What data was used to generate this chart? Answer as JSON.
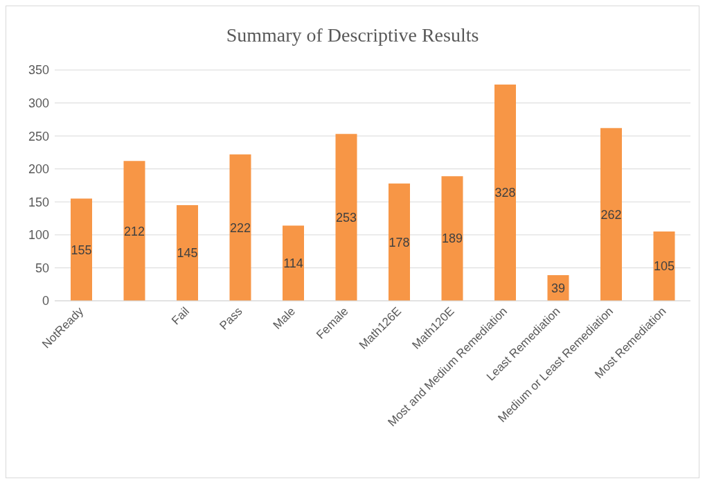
{
  "chart_data": {
    "type": "bar",
    "title": "Summary of Descriptive Results",
    "categories": [
      "NotReady",
      null,
      "Fail",
      "Pass",
      "Male",
      "Female",
      "Math126E",
      "Math120E",
      "Most and Medium Remediation",
      "Least Remediation",
      "Medium or Least Remediation",
      "Most Remediation"
    ],
    "values": [
      155,
      212,
      145,
      222,
      114,
      253,
      178,
      189,
      328,
      39,
      262,
      105
    ],
    "color": "#f79646",
    "ylim": [
      0,
      350
    ],
    "yticks": [
      0,
      50,
      100,
      150,
      200,
      250,
      300,
      350
    ],
    "grid": "y",
    "data_labels": true
  }
}
